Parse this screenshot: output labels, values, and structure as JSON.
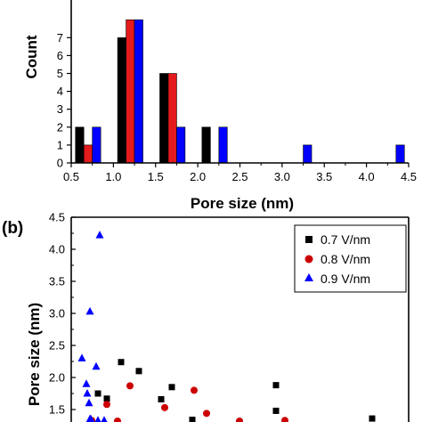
{
  "chart_data": [
    {
      "panel_label": "",
      "type": "bar",
      "xlabel": "Pore size (nm)",
      "ylabel": "Count",
      "xlim": [
        0.5,
        4.5
      ],
      "ylim": [
        0,
        8
      ],
      "x_ticks": [
        "0.5",
        "1.0",
        "1.5",
        "2.0",
        "2.5",
        "3.0",
        "3.5",
        "4.0",
        "4.5"
      ],
      "y_ticks": [
        "0",
        "1",
        "2",
        "3",
        "4",
        "5",
        "6",
        "7"
      ],
      "bin_width": 0.1,
      "series": [
        {
          "name": "0.7 V/nm",
          "color": "#000000",
          "x": [
            0.6,
            1.1,
            1.6,
            2.1
          ],
          "values": [
            2,
            7,
            5,
            2
          ]
        },
        {
          "name": "0.8 V/nm",
          "color": "#e41a1c",
          "x": [
            0.7,
            1.2,
            1.7
          ],
          "values": [
            1,
            8,
            5
          ]
        },
        {
          "name": "0.9 V/nm",
          "color": "#0000ff",
          "x": [
            0.8,
            1.3,
            1.8,
            2.3,
            3.3,
            4.4
          ],
          "values": [
            2,
            8,
            2,
            2,
            1,
            1
          ]
        }
      ]
    },
    {
      "panel_label": "(b)",
      "type": "scatter",
      "xlabel": "",
      "ylabel": "Pore size (nm)",
      "ylim": [
        1.3,
        4.5
      ],
      "y_ticks": [
        "1.5",
        "2.0",
        "2.5",
        "3.0",
        "3.5",
        "4.0",
        "4.5"
      ],
      "legend": "top-right",
      "series": [
        {
          "name": "0.7 V/nm",
          "marker": "square",
          "color": "#000000",
          "x": [
            1,
            2,
            3,
            4,
            5,
            6,
            7,
            8,
            9,
            10
          ],
          "y": [
            1.75,
            1.67,
            2.24,
            2.1,
            1.66,
            1.85,
            1.34,
            1.88,
            1.48,
            1.36
          ]
        },
        {
          "name": "0.8 V/nm",
          "marker": "circle",
          "color": "#cc0000",
          "x": [
            1,
            2,
            3,
            4,
            5,
            6,
            7,
            8,
            9
          ],
          "y": [
            1.33,
            1.58,
            1.32,
            1.87,
            1.53,
            1.8,
            1.44,
            1.32,
            1.33
          ]
        },
        {
          "name": "0.9 V/nm",
          "marker": "triangle",
          "color": "#0000ff",
          "x": [
            1,
            2,
            3,
            4,
            5,
            6,
            7,
            8,
            9,
            10,
            11
          ],
          "y": [
            2.3,
            1.9,
            1.75,
            1.6,
            1.35,
            3.03,
            2.17,
            4.22,
            1.35,
            1.33,
            1.33
          ]
        }
      ]
    }
  ]
}
